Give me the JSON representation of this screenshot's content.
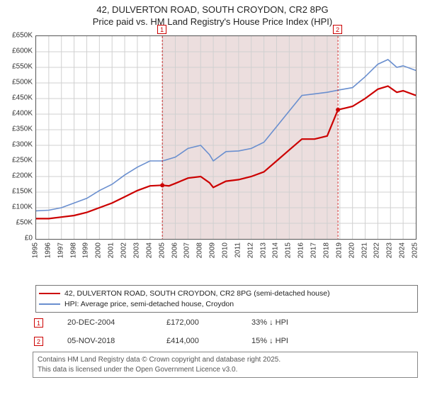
{
  "title": {
    "line1": "42, DULVERTON ROAD, SOUTH CROYDON, CR2 8PG",
    "line2": "Price paid vs. HM Land Registry's House Price Index (HPI)"
  },
  "chart": {
    "type": "line",
    "background_color": "#ffffff",
    "grid_color": "#d0d0d0",
    "border_color": "#555555",
    "y": {
      "min": 0,
      "max": 650000,
      "step": 50000,
      "prefix": "£",
      "suffix": "K",
      "divisor": 1000,
      "label_fontsize": 10
    },
    "x": {
      "min": 1995,
      "max": 2025,
      "step": 1,
      "label_fontsize": 10,
      "rotation": -90
    },
    "shade": {
      "color": "#ecdede",
      "x_from": 2004.97,
      "x_to": 2018.85
    },
    "series": [
      {
        "name": "price_paid",
        "color": "#cc0000",
        "line_width": 2.2,
        "legend": "42, DULVERTON ROAD, SOUTH CROYDON, CR2 8PG (semi-detached house)",
        "points": [
          [
            1995,
            65000
          ],
          [
            1996,
            65000
          ],
          [
            1997,
            70000
          ],
          [
            1998,
            75000
          ],
          [
            1999,
            85000
          ],
          [
            2000,
            100000
          ],
          [
            2001,
            115000
          ],
          [
            2002,
            135000
          ],
          [
            2003,
            155000
          ],
          [
            2004,
            170000
          ],
          [
            2004.97,
            172000
          ],
          [
            2005.5,
            170000
          ],
          [
            2006,
            178000
          ],
          [
            2007,
            195000
          ],
          [
            2008,
            200000
          ],
          [
            2008.7,
            180000
          ],
          [
            2009,
            165000
          ],
          [
            2010,
            185000
          ],
          [
            2011,
            190000
          ],
          [
            2012,
            200000
          ],
          [
            2013,
            215000
          ],
          [
            2014,
            250000
          ],
          [
            2015,
            285000
          ],
          [
            2016,
            320000
          ],
          [
            2017,
            320000
          ],
          [
            2018,
            330000
          ],
          [
            2018.85,
            414000
          ],
          [
            2019.5,
            420000
          ],
          [
            2020,
            425000
          ],
          [
            2021,
            450000
          ],
          [
            2022,
            480000
          ],
          [
            2022.8,
            490000
          ],
          [
            2023.5,
            470000
          ],
          [
            2024,
            475000
          ],
          [
            2025,
            460000
          ]
        ]
      },
      {
        "name": "hpi",
        "color": "#6a8fcf",
        "line_width": 1.6,
        "legend": "HPI: Average price, semi-detached house, Croydon",
        "points": [
          [
            1995,
            90000
          ],
          [
            1996,
            92000
          ],
          [
            1997,
            100000
          ],
          [
            1998,
            115000
          ],
          [
            1999,
            130000
          ],
          [
            2000,
            155000
          ],
          [
            2001,
            175000
          ],
          [
            2002,
            205000
          ],
          [
            2003,
            230000
          ],
          [
            2004,
            250000
          ],
          [
            2005,
            250000
          ],
          [
            2006,
            262000
          ],
          [
            2007,
            290000
          ],
          [
            2008,
            300000
          ],
          [
            2008.7,
            270000
          ],
          [
            2009,
            250000
          ],
          [
            2010,
            280000
          ],
          [
            2011,
            282000
          ],
          [
            2012,
            290000
          ],
          [
            2013,
            310000
          ],
          [
            2014,
            360000
          ],
          [
            2015,
            410000
          ],
          [
            2016,
            460000
          ],
          [
            2017,
            465000
          ],
          [
            2018,
            470000
          ],
          [
            2019,
            478000
          ],
          [
            2020,
            485000
          ],
          [
            2021,
            520000
          ],
          [
            2022,
            560000
          ],
          [
            2022.8,
            575000
          ],
          [
            2023.5,
            550000
          ],
          [
            2024,
            555000
          ],
          [
            2025,
            540000
          ]
        ]
      }
    ],
    "markers": [
      {
        "num": "1",
        "x": 2004.97,
        "y": 172000,
        "color": "#cc0000",
        "label_y_top": -2
      },
      {
        "num": "2",
        "x": 2018.85,
        "y": 414000,
        "color": "#cc0000",
        "label_y_top": -2
      }
    ]
  },
  "legend": {
    "border_color": "#777777",
    "rows": [
      {
        "color": "#cc0000",
        "label": "42, DULVERTON ROAD, SOUTH CROYDON, CR2 8PG (semi-detached house)"
      },
      {
        "color": "#6a8fcf",
        "label": "HPI: Average price, semi-detached house, Croydon"
      }
    ]
  },
  "events": [
    {
      "num": "1",
      "date": "20-DEC-2004",
      "price": "£172,000",
      "delta": "33% ↓ HPI"
    },
    {
      "num": "2",
      "date": "05-NOV-2018",
      "price": "£414,000",
      "delta": "15% ↓ HPI"
    }
  ],
  "footer": {
    "line1": "Contains HM Land Registry data © Crown copyright and database right 2025.",
    "line2": "This data is licensed under the Open Government Licence v3.0."
  }
}
